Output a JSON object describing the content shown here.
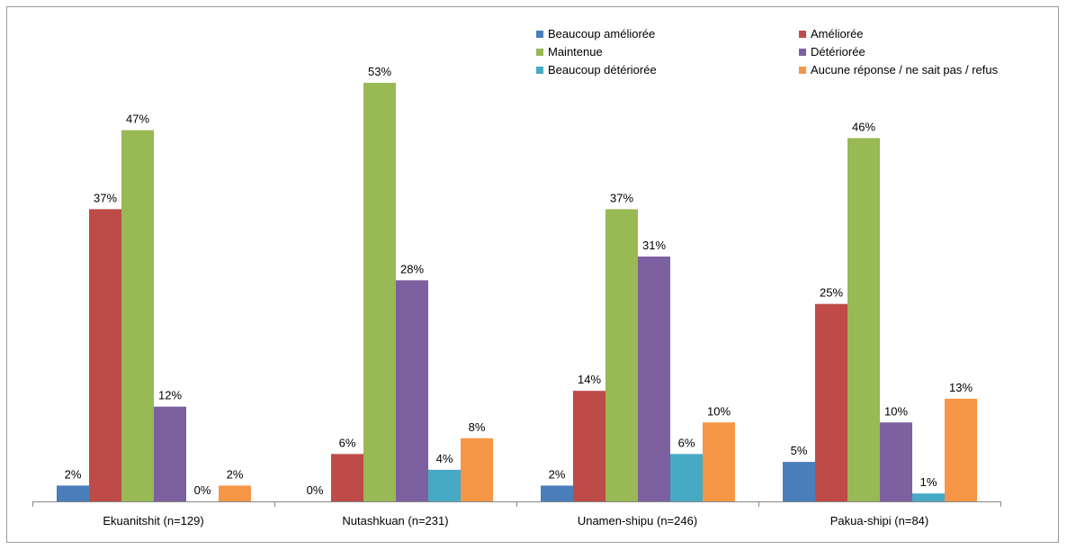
{
  "chart_data": {
    "type": "bar",
    "categories": [
      "Ekuanitshit (n=129)",
      "Nutashkuan (n=231)",
      "Unamen-shipu (n=246)",
      "Pakua-shipi (n=84)"
    ],
    "series": [
      {
        "name": "Beaucoup améliorée",
        "color": "#4a7ebb",
        "values": [
          2,
          0,
          2,
          5
        ]
      },
      {
        "name": "Améliorée",
        "color": "#be4b48",
        "values": [
          37,
          6,
          14,
          25
        ]
      },
      {
        "name": "Maintenue",
        "color": "#98b954",
        "values": [
          47,
          53,
          37,
          46
        ]
      },
      {
        "name": "Détériorée",
        "color": "#7d60a0",
        "values": [
          12,
          28,
          31,
          10
        ]
      },
      {
        "name": "Beaucoup détériorée",
        "color": "#46aac5",
        "values": [
          0,
          4,
          6,
          1
        ]
      },
      {
        "name": "Aucune réponse / ne sait pas / refus",
        "color": "#f79646",
        "values": [
          2,
          8,
          10,
          13
        ]
      }
    ],
    "value_suffix": "%",
    "ylim": [
      0,
      53
    ],
    "grid": false,
    "legend_position": "top-right"
  }
}
